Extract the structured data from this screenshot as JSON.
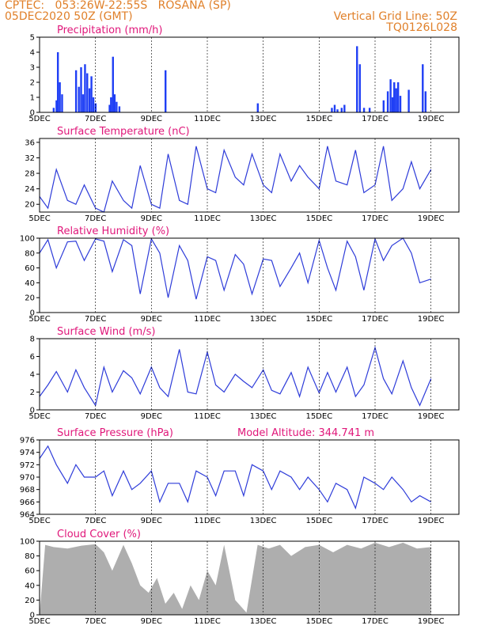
{
  "header": {
    "line1": "CPTEC:   053:26W-22:55S   ROSANA (SP)",
    "line2": "05DEC2020 50Z (GMT)",
    "grid_note": "Vertical Grid Line: 50Z",
    "code": "TQ0126L028"
  },
  "chart_data": [
    {
      "type": "bar",
      "title": "Precipitation (mm/h)",
      "x_labels": [
        "5DEC",
        "7DEC",
        "9DEC",
        "11DEC",
        "13DEC",
        "15DEC",
        "17DEC",
        "19DEC"
      ],
      "ylim": [
        0,
        5
      ],
      "yticks": [
        0,
        1,
        2,
        3,
        4,
        5
      ],
      "color": "#1f3ff5",
      "bars": [
        {
          "x": 0.5,
          "v": 0.3
        },
        {
          "x": 0.6,
          "v": 0.8
        },
        {
          "x": 0.65,
          "v": 4.0
        },
        {
          "x": 0.72,
          "v": 2.0
        },
        {
          "x": 0.8,
          "v": 1.2
        },
        {
          "x": 1.3,
          "v": 2.8
        },
        {
          "x": 1.4,
          "v": 1.7
        },
        {
          "x": 1.48,
          "v": 3.0
        },
        {
          "x": 1.55,
          "v": 1.2
        },
        {
          "x": 1.62,
          "v": 3.2
        },
        {
          "x": 1.7,
          "v": 2.6
        },
        {
          "x": 1.78,
          "v": 1.6
        },
        {
          "x": 1.85,
          "v": 2.4
        },
        {
          "x": 1.92,
          "v": 1.0
        },
        {
          "x": 2.0,
          "v": 0.6
        },
        {
          "x": 2.5,
          "v": 0.5
        },
        {
          "x": 2.55,
          "v": 1.0
        },
        {
          "x": 2.62,
          "v": 3.7
        },
        {
          "x": 2.68,
          "v": 1.2
        },
        {
          "x": 2.75,
          "v": 0.7
        },
        {
          "x": 2.85,
          "v": 0.4
        },
        {
          "x": 4.5,
          "v": 2.8
        },
        {
          "x": 7.8,
          "v": 0.6
        },
        {
          "x": 10.45,
          "v": 0.3
        },
        {
          "x": 10.55,
          "v": 0.5
        },
        {
          "x": 10.65,
          "v": 0.2
        },
        {
          "x": 10.8,
          "v": 0.3
        },
        {
          "x": 10.9,
          "v": 0.5
        },
        {
          "x": 11.35,
          "v": 4.4
        },
        {
          "x": 11.45,
          "v": 3.2
        },
        {
          "x": 11.6,
          "v": 0.3
        },
        {
          "x": 11.8,
          "v": 0.3
        },
        {
          "x": 12.3,
          "v": 0.8
        },
        {
          "x": 12.45,
          "v": 1.4
        },
        {
          "x": 12.55,
          "v": 2.2
        },
        {
          "x": 12.62,
          "v": 1.0
        },
        {
          "x": 12.68,
          "v": 2.0
        },
        {
          "x": 12.75,
          "v": 1.6
        },
        {
          "x": 12.82,
          "v": 2.0
        },
        {
          "x": 12.9,
          "v": 1.1
        },
        {
          "x": 13.2,
          "v": 1.5
        },
        {
          "x": 13.7,
          "v": 3.2
        },
        {
          "x": 13.8,
          "v": 1.4
        }
      ]
    },
    {
      "type": "line",
      "title": "Surface Temperature (nC)",
      "x_labels": [
        "5DEC",
        "7DEC",
        "9DEC",
        "11DEC",
        "13DEC",
        "15DEC",
        "17DEC",
        "19DEC"
      ],
      "ylim": [
        18,
        37
      ],
      "yticks": [
        20,
        24,
        28,
        32,
        36
      ],
      "color": "#2e3cd9",
      "x": [
        0,
        0.3,
        0.6,
        1.0,
        1.3,
        1.6,
        2.0,
        2.3,
        2.6,
        3.0,
        3.3,
        3.6,
        4.0,
        4.3,
        4.6,
        5.0,
        5.3,
        5.6,
        6.0,
        6.3,
        6.6,
        7.0,
        7.3,
        7.6,
        8.0,
        8.3,
        8.6,
        9.0,
        9.3,
        9.6,
        10.0,
        10.3,
        10.6,
        11.0,
        11.3,
        11.6,
        12.0,
        12.3,
        12.6,
        13.0,
        13.3,
        13.6,
        14.0
      ],
      "y": [
        22,
        19,
        29,
        21,
        20,
        25,
        19,
        18,
        26,
        21,
        19,
        30,
        20,
        19,
        33,
        21,
        20,
        35,
        24,
        23,
        34,
        27,
        25,
        33,
        25,
        23,
        33,
        26,
        30,
        27,
        24,
        35,
        26,
        25,
        34,
        23,
        25,
        35,
        21,
        24,
        31,
        24,
        29
      ]
    },
    {
      "type": "line",
      "title": "Relative Humidity (%)",
      "x_labels": [
        "5DEC",
        "7DEC",
        "9DEC",
        "11DEC",
        "13DEC",
        "15DEC",
        "17DEC",
        "19DEC"
      ],
      "ylim": [
        0,
        100
      ],
      "yticks": [
        0,
        20,
        40,
        60,
        80,
        100
      ],
      "color": "#2e3cd9",
      "x": [
        0,
        0.3,
        0.6,
        1.0,
        1.3,
        1.6,
        2.0,
        2.3,
        2.6,
        3.0,
        3.3,
        3.6,
        4.0,
        4.3,
        4.6,
        5.0,
        5.3,
        5.6,
        6.0,
        6.3,
        6.6,
        7.0,
        7.3,
        7.6,
        8.0,
        8.3,
        8.6,
        9.0,
        9.3,
        9.6,
        10.0,
        10.3,
        10.6,
        11.0,
        11.3,
        11.6,
        12.0,
        12.3,
        12.6,
        13.0,
        13.3,
        13.6,
        14.0
      ],
      "y": [
        80,
        98,
        60,
        95,
        96,
        70,
        99,
        96,
        55,
        98,
        90,
        25,
        99,
        80,
        20,
        90,
        70,
        18,
        75,
        70,
        30,
        78,
        65,
        25,
        72,
        70,
        35,
        60,
        80,
        40,
        97,
        60,
        30,
        96,
        75,
        30,
        99,
        70,
        90,
        100,
        80,
        40,
        45
      ]
    },
    {
      "type": "line",
      "title": "Surface Wind (m/s)",
      "x_labels": [
        "5DEC",
        "7DEC",
        "9DEC",
        "11DEC",
        "13DEC",
        "15DEC",
        "17DEC",
        "19DEC"
      ],
      "ylim": [
        0,
        8
      ],
      "yticks": [
        0,
        2,
        4,
        6,
        8
      ],
      "color": "#2e3cd9",
      "x": [
        0,
        0.3,
        0.6,
        1.0,
        1.3,
        1.6,
        2.0,
        2.3,
        2.6,
        3.0,
        3.3,
        3.6,
        4.0,
        4.3,
        4.6,
        5.0,
        5.3,
        5.6,
        6.0,
        6.3,
        6.6,
        7.0,
        7.3,
        7.6,
        8.0,
        8.3,
        8.6,
        9.0,
        9.3,
        9.6,
        10.0,
        10.3,
        10.6,
        11.0,
        11.3,
        11.6,
        12.0,
        12.3,
        12.6,
        13.0,
        13.3,
        13.6,
        14.0
      ],
      "y": [
        1.5,
        2.8,
        4.3,
        2.0,
        4.5,
        2.5,
        0.5,
        4.8,
        2.0,
        4.4,
        3.6,
        1.8,
        4.8,
        2.5,
        1.5,
        6.8,
        2.0,
        1.8,
        6.5,
        2.8,
        2.0,
        4.0,
        3.2,
        2.5,
        4.5,
        2.2,
        1.8,
        4.2,
        1.5,
        4.8,
        1.9,
        4.2,
        2.0,
        4.8,
        1.5,
        2.8,
        7.0,
        3.5,
        1.8,
        5.5,
        2.5,
        0.5,
        3.5
      ]
    },
    {
      "type": "line",
      "title": "Surface Pressure (hPa)",
      "annotation": "Model Altitude: 344.741 m",
      "x_labels": [
        "5DEC",
        "7DEC",
        "9DEC",
        "11DEC",
        "13DEC",
        "15DEC",
        "17DEC",
        "19DEC"
      ],
      "ylim": [
        964,
        976
      ],
      "yticks": [
        964,
        966,
        968,
        970,
        972,
        974,
        976
      ],
      "color": "#2e3cd9",
      "x": [
        0,
        0.3,
        0.6,
        1.0,
        1.3,
        1.6,
        2.0,
        2.3,
        2.6,
        3.0,
        3.3,
        3.6,
        4.0,
        4.3,
        4.6,
        5.0,
        5.3,
        5.6,
        6.0,
        6.3,
        6.6,
        7.0,
        7.3,
        7.6,
        8.0,
        8.3,
        8.6,
        9.0,
        9.3,
        9.6,
        10.0,
        10.3,
        10.6,
        11.0,
        11.3,
        11.6,
        12.0,
        12.3,
        12.6,
        13.0,
        13.3,
        13.6,
        14.0
      ],
      "y": [
        973,
        975,
        972,
        969,
        972,
        970,
        970,
        971,
        967,
        971,
        968,
        969,
        971,
        966,
        969,
        969,
        966,
        971,
        970,
        967,
        971,
        971,
        967,
        972,
        971,
        968,
        971,
        970,
        968,
        970,
        968,
        966,
        969,
        968,
        965,
        970,
        969,
        968,
        970,
        968,
        966,
        967,
        966
      ]
    },
    {
      "type": "area",
      "title": "Cloud Cover (%)",
      "x_labels": [
        "5DEC",
        "7DEC",
        "9DEC",
        "11DEC",
        "13DEC",
        "15DEC",
        "17DEC",
        "19DEC"
      ],
      "ylim": [
        0,
        100
      ],
      "yticks": [
        0,
        20,
        40,
        60,
        80,
        100
      ],
      "color": "#aeaeae",
      "x": [
        0,
        0.2,
        0.5,
        1.0,
        1.5,
        2.0,
        2.3,
        2.6,
        3.0,
        3.3,
        3.6,
        3.9,
        4.2,
        4.5,
        4.8,
        5.1,
        5.4,
        5.7,
        6.0,
        6.3,
        6.6,
        7.0,
        7.4,
        7.8,
        8.2,
        8.6,
        9.0,
        9.5,
        10.0,
        10.5,
        11.0,
        11.5,
        12.0,
        12.5,
        13.0,
        13.5,
        14.0
      ],
      "y": [
        0,
        95,
        92,
        90,
        94,
        96,
        85,
        60,
        95,
        70,
        40,
        30,
        50,
        15,
        30,
        8,
        40,
        20,
        60,
        40,
        95,
        20,
        3,
        95,
        90,
        95,
        80,
        92,
        95,
        85,
        95,
        90,
        98,
        92,
        98,
        90,
        92
      ]
    }
  ]
}
